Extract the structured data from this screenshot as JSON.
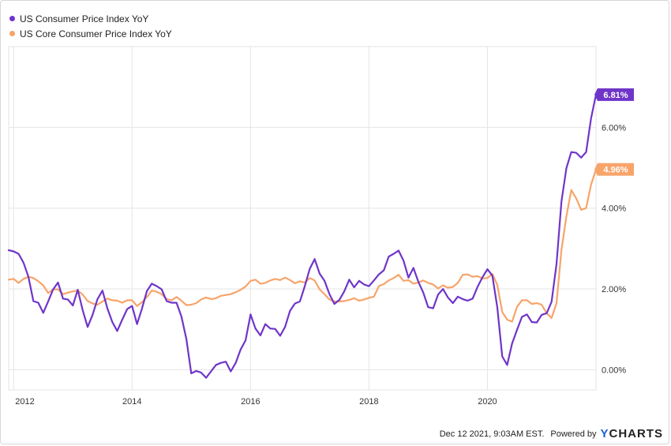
{
  "chart_data": {
    "type": "line",
    "title": "",
    "xlabel": "",
    "ylabel": "",
    "x_ticks": [
      "2012",
      "2014",
      "2016",
      "2018",
      "2020"
    ],
    "y_ticks": [
      "0.00%",
      "2.00%",
      "4.00%",
      "6.00%"
    ],
    "ylim": [
      -0.5,
      8.0
    ],
    "xlim": [
      "2011-12",
      "2021-11"
    ],
    "grid": true,
    "legend_position": "top-left",
    "series": [
      {
        "name": "US Consumer Price Index YoY",
        "color": "#6f35c9",
        "end_label": "6.81%",
        "x": [
          "2011-12",
          "2012-01",
          "2012-02",
          "2012-03",
          "2012-04",
          "2012-05",
          "2012-06",
          "2012-07",
          "2012-08",
          "2012-09",
          "2012-10",
          "2012-11",
          "2012-12",
          "2013-01",
          "2013-02",
          "2013-03",
          "2013-04",
          "2013-05",
          "2013-06",
          "2013-07",
          "2013-08",
          "2013-09",
          "2013-10",
          "2013-11",
          "2013-12",
          "2014-01",
          "2014-02",
          "2014-03",
          "2014-04",
          "2014-05",
          "2014-06",
          "2014-07",
          "2014-08",
          "2014-09",
          "2014-10",
          "2014-11",
          "2014-12",
          "2015-01",
          "2015-02",
          "2015-03",
          "2015-04",
          "2015-05",
          "2015-06",
          "2015-07",
          "2015-08",
          "2015-09",
          "2015-10",
          "2015-11",
          "2015-12",
          "2016-01",
          "2016-02",
          "2016-03",
          "2016-04",
          "2016-05",
          "2016-06",
          "2016-07",
          "2016-08",
          "2016-09",
          "2016-10",
          "2016-11",
          "2016-12",
          "2017-01",
          "2017-02",
          "2017-03",
          "2017-04",
          "2017-05",
          "2017-06",
          "2017-07",
          "2017-08",
          "2017-09",
          "2017-10",
          "2017-11",
          "2017-12",
          "2018-01",
          "2018-02",
          "2018-03",
          "2018-04",
          "2018-05",
          "2018-06",
          "2018-07",
          "2018-08",
          "2018-09",
          "2018-10",
          "2018-11",
          "2018-12",
          "2019-01",
          "2019-02",
          "2019-03",
          "2019-04",
          "2019-05",
          "2019-06",
          "2019-07",
          "2019-08",
          "2019-09",
          "2019-10",
          "2019-11",
          "2019-12",
          "2020-01",
          "2020-02",
          "2020-03",
          "2020-04",
          "2020-05",
          "2020-06",
          "2020-07",
          "2020-08",
          "2020-09",
          "2020-10",
          "2020-11",
          "2020-12",
          "2021-01",
          "2021-02",
          "2021-03",
          "2021-04",
          "2021-05",
          "2021-06",
          "2021-07",
          "2021-08",
          "2021-09",
          "2021-10",
          "2021-11"
        ],
        "values": [
          2.96,
          2.93,
          2.87,
          2.65,
          2.3,
          1.7,
          1.66,
          1.41,
          1.69,
          1.99,
          2.16,
          1.76,
          1.74,
          1.59,
          1.98,
          1.47,
          1.06,
          1.36,
          1.75,
          1.96,
          1.52,
          1.18,
          0.96,
          1.24,
          1.5,
          1.58,
          1.13,
          1.51,
          1.95,
          2.13,
          2.07,
          1.99,
          1.7,
          1.66,
          1.66,
          1.32,
          0.76,
          -0.09,
          -0.03,
          -0.07,
          -0.2,
          -0.04,
          0.12,
          0.17,
          0.2,
          -0.04,
          0.17,
          0.5,
          0.73,
          1.37,
          1.02,
          0.85,
          1.13,
          1.02,
          1.01,
          0.84,
          1.06,
          1.46,
          1.64,
          1.69,
          2.07,
          2.5,
          2.74,
          2.38,
          2.2,
          1.87,
          1.63,
          1.73,
          1.94,
          2.23,
          2.04,
          2.2,
          2.11,
          2.07,
          2.21,
          2.36,
          2.46,
          2.8,
          2.87,
          2.95,
          2.7,
          2.28,
          2.52,
          2.18,
          1.91,
          1.55,
          1.52,
          1.86,
          2.0,
          1.79,
          1.65,
          1.81,
          1.75,
          1.71,
          1.76,
          2.05,
          2.29,
          2.49,
          2.33,
          1.54,
          0.33,
          0.12,
          0.65,
          0.99,
          1.31,
          1.37,
          1.18,
          1.17,
          1.36,
          1.4,
          1.68,
          2.62,
          4.16,
          4.99,
          5.39,
          5.37,
          5.25,
          5.39,
          6.22,
          6.81
        ]
      },
      {
        "name": "US Core Consumer Price Index YoY",
        "color": "#f7a46a",
        "end_label": "4.96%",
        "x": [
          "2011-12",
          "2012-01",
          "2012-02",
          "2012-03",
          "2012-04",
          "2012-05",
          "2012-06",
          "2012-07",
          "2012-08",
          "2012-09",
          "2012-10",
          "2012-11",
          "2012-12",
          "2013-01",
          "2013-02",
          "2013-03",
          "2013-04",
          "2013-05",
          "2013-06",
          "2013-07",
          "2013-08",
          "2013-09",
          "2013-10",
          "2013-11",
          "2013-12",
          "2014-01",
          "2014-02",
          "2014-03",
          "2014-04",
          "2014-05",
          "2014-06",
          "2014-07",
          "2014-08",
          "2014-09",
          "2014-10",
          "2014-11",
          "2014-12",
          "2015-01",
          "2015-02",
          "2015-03",
          "2015-04",
          "2015-05",
          "2015-06",
          "2015-07",
          "2015-08",
          "2015-09",
          "2015-10",
          "2015-11",
          "2015-12",
          "2016-01",
          "2016-02",
          "2016-03",
          "2016-04",
          "2016-05",
          "2016-06",
          "2016-07",
          "2016-08",
          "2016-09",
          "2016-10",
          "2016-11",
          "2016-12",
          "2017-01",
          "2017-02",
          "2017-03",
          "2017-04",
          "2017-05",
          "2017-06",
          "2017-07",
          "2017-08",
          "2017-09",
          "2017-10",
          "2017-11",
          "2017-12",
          "2018-01",
          "2018-02",
          "2018-03",
          "2018-04",
          "2018-05",
          "2018-06",
          "2018-07",
          "2018-08",
          "2018-09",
          "2018-10",
          "2018-11",
          "2018-12",
          "2019-01",
          "2019-02",
          "2019-03",
          "2019-04",
          "2019-05",
          "2019-06",
          "2019-07",
          "2019-08",
          "2019-09",
          "2019-10",
          "2019-11",
          "2019-12",
          "2020-01",
          "2020-02",
          "2020-03",
          "2020-04",
          "2020-05",
          "2020-06",
          "2020-07",
          "2020-08",
          "2020-09",
          "2020-10",
          "2020-11",
          "2020-12",
          "2021-01",
          "2021-02",
          "2021-03",
          "2021-04",
          "2021-05",
          "2021-06",
          "2021-07",
          "2021-08",
          "2021-09",
          "2021-10",
          "2021-11"
        ],
        "values": [
          2.23,
          2.25,
          2.15,
          2.25,
          2.3,
          2.27,
          2.19,
          2.09,
          1.9,
          1.99,
          1.99,
          1.87,
          1.91,
          1.94,
          1.96,
          1.86,
          1.7,
          1.64,
          1.61,
          1.69,
          1.76,
          1.72,
          1.71,
          1.66,
          1.72,
          1.72,
          1.58,
          1.67,
          1.8,
          1.96,
          1.93,
          1.87,
          1.75,
          1.72,
          1.8,
          1.71,
          1.6,
          1.61,
          1.65,
          1.74,
          1.79,
          1.75,
          1.77,
          1.83,
          1.85,
          1.87,
          1.92,
          1.98,
          2.06,
          2.2,
          2.23,
          2.13,
          2.15,
          2.21,
          2.25,
          2.22,
          2.28,
          2.22,
          2.14,
          2.19,
          2.16,
          2.27,
          2.21,
          1.99,
          1.87,
          1.74,
          1.69,
          1.69,
          1.7,
          1.73,
          1.77,
          1.71,
          1.74,
          1.78,
          1.81,
          2.07,
          2.12,
          2.21,
          2.27,
          2.35,
          2.2,
          2.22,
          2.13,
          2.16,
          2.21,
          2.15,
          2.11,
          2.01,
          2.09,
          2.03,
          2.05,
          2.15,
          2.35,
          2.36,
          2.3,
          2.32,
          2.26,
          2.27,
          2.37,
          2.1,
          1.43,
          1.24,
          1.19,
          1.56,
          1.72,
          1.72,
          1.63,
          1.65,
          1.61,
          1.4,
          1.28,
          1.65,
          2.96,
          3.8,
          4.45,
          4.24,
          3.96,
          4.0,
          4.58,
          4.96
        ]
      }
    ]
  },
  "footer": {
    "timestamp": "Dec 12 2021, 9:03AM EST.",
    "powered_by": "Powered by",
    "brand_first": "Y",
    "brand_rest": "CHARTS"
  }
}
